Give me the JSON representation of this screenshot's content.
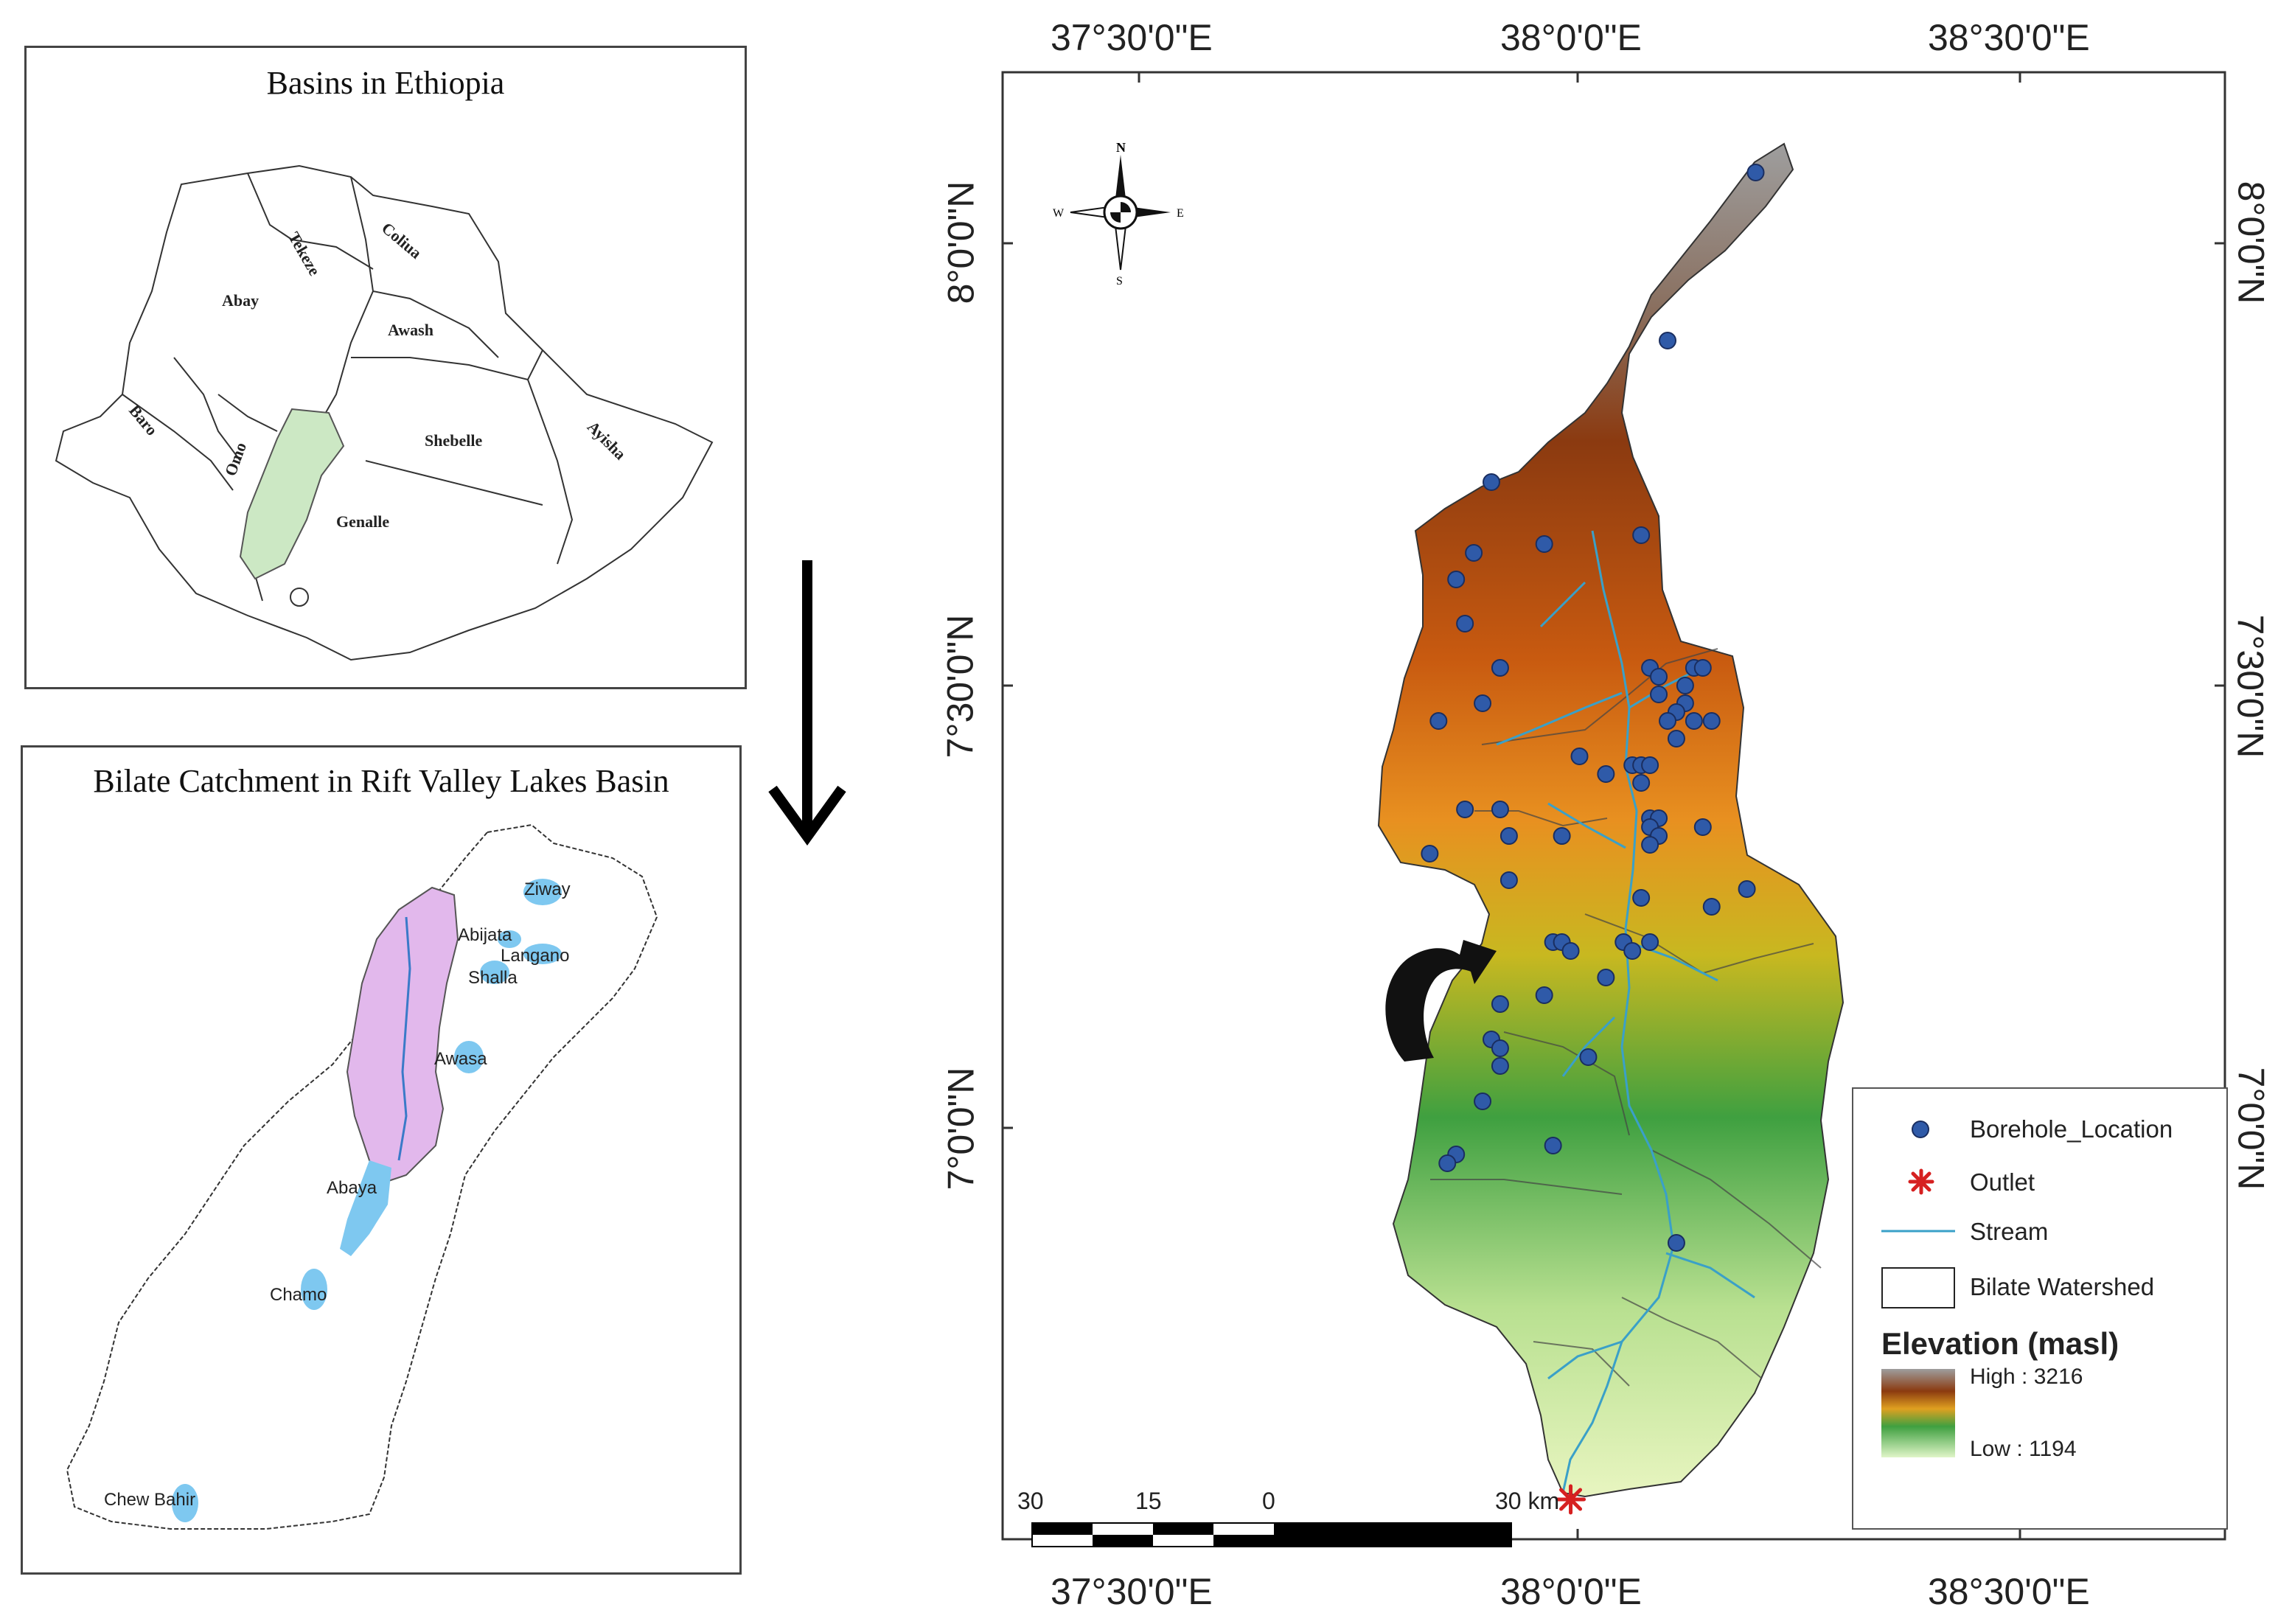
{
  "inset_ethiopia": {
    "title": "Basins in Ethiopia",
    "basins": [
      "Tekeze",
      "Coliua",
      "Abay",
      "Awash",
      "Baro",
      "Omo",
      "Shebelle",
      "Ayisha",
      "Genalle"
    ]
  },
  "inset_rift": {
    "title": "Bilate Catchment in Rift Valley Lakes Basin",
    "lakes": [
      "Ziway",
      "Abijata",
      "Langano",
      "Shalla",
      "Awasa",
      "Abaya",
      "Chamo",
      "Chew Bahir"
    ]
  },
  "main_map": {
    "top_axis": [
      "37°30'0\"E",
      "38°0'0\"E",
      "38°30'0\"E"
    ],
    "bottom_axis": [
      "37°30'0\"E",
      "38°0'0\"E",
      "38°30'0\"E"
    ],
    "left_axis": [
      "8°0'0\"N",
      "7°30'0\"N",
      "7°0'0\"N"
    ],
    "right_axis": [
      "8°0'0\"N",
      "7°30'0\"N",
      "7°0'0\"N"
    ],
    "north_arrow": {
      "n": "N",
      "s": "S",
      "e": "E",
      "w": "W"
    },
    "scale_bar": [
      "30",
      "15",
      "0",
      "30 km"
    ],
    "boreholes": [
      {
        "lon": 38.2,
        "lat": 8.08
      },
      {
        "lon": 38.1,
        "lat": 7.89
      },
      {
        "lon": 37.9,
        "lat": 7.73
      },
      {
        "lon": 38.07,
        "lat": 7.67
      },
      {
        "lon": 37.96,
        "lat": 7.66
      },
      {
        "lon": 37.88,
        "lat": 7.65
      },
      {
        "lon": 37.86,
        "lat": 7.62
      },
      {
        "lon": 37.87,
        "lat": 7.57
      },
      {
        "lon": 37.91,
        "lat": 7.52
      },
      {
        "lon": 38.08,
        "lat": 7.52
      },
      {
        "lon": 38.09,
        "lat": 7.51
      },
      {
        "lon": 38.13,
        "lat": 7.52
      },
      {
        "lon": 38.14,
        "lat": 7.52
      },
      {
        "lon": 38.12,
        "lat": 7.5
      },
      {
        "lon": 38.09,
        "lat": 7.49
      },
      {
        "lon": 37.89,
        "lat": 7.48
      },
      {
        "lon": 38.12,
        "lat": 7.48
      },
      {
        "lon": 38.11,
        "lat": 7.47
      },
      {
        "lon": 38.1,
        "lat": 7.46
      },
      {
        "lon": 38.13,
        "lat": 7.46
      },
      {
        "lon": 38.15,
        "lat": 7.46
      },
      {
        "lon": 37.84,
        "lat": 7.46
      },
      {
        "lon": 38.11,
        "lat": 7.44
      },
      {
        "lon": 38.0,
        "lat": 7.42
      },
      {
        "lon": 38.06,
        "lat": 7.41
      },
      {
        "lon": 38.07,
        "lat": 7.41
      },
      {
        "lon": 38.08,
        "lat": 7.41
      },
      {
        "lon": 38.03,
        "lat": 7.4
      },
      {
        "lon": 38.07,
        "lat": 7.39
      },
      {
        "lon": 37.87,
        "lat": 7.36
      },
      {
        "lon": 37.91,
        "lat": 7.36
      },
      {
        "lon": 38.08,
        "lat": 7.35
      },
      {
        "lon": 38.09,
        "lat": 7.35
      },
      {
        "lon": 38.14,
        "lat": 7.34
      },
      {
        "lon": 38.08,
        "lat": 7.34
      },
      {
        "lon": 37.92,
        "lat": 7.33
      },
      {
        "lon": 38.09,
        "lat": 7.33
      },
      {
        "lon": 37.98,
        "lat": 7.33
      },
      {
        "lon": 38.08,
        "lat": 7.32
      },
      {
        "lon": 37.83,
        "lat": 7.31
      },
      {
        "lon": 37.92,
        "lat": 7.28
      },
      {
        "lon": 38.07,
        "lat": 7.26
      },
      {
        "lon": 38.19,
        "lat": 7.27
      },
      {
        "lon": 38.15,
        "lat": 7.25
      },
      {
        "lon": 37.97,
        "lat": 7.21
      },
      {
        "lon": 37.98,
        "lat": 7.21
      },
      {
        "lon": 38.05,
        "lat": 7.21
      },
      {
        "lon": 37.99,
        "lat": 7.2
      },
      {
        "lon": 38.06,
        "lat": 7.2
      },
      {
        "lon": 38.08,
        "lat": 7.21
      },
      {
        "lon": 38.03,
        "lat": 7.17
      },
      {
        "lon": 37.96,
        "lat": 7.15
      },
      {
        "lon": 37.91,
        "lat": 7.14
      },
      {
        "lon": 37.9,
        "lat": 7.1
      },
      {
        "lon": 37.91,
        "lat": 7.09
      },
      {
        "lon": 37.91,
        "lat": 7.07
      },
      {
        "lon": 38.01,
        "lat": 7.08
      },
      {
        "lon": 37.89,
        "lat": 7.03
      },
      {
        "lon": 37.97,
        "lat": 6.98
      },
      {
        "lon": 37.86,
        "lat": 6.97
      },
      {
        "lon": 37.85,
        "lat": 6.96
      },
      {
        "lon": 38.11,
        "lat": 6.87
      }
    ],
    "outlet": {
      "lon": 37.99,
      "lat": 6.58
    }
  },
  "legend": {
    "borehole": "Borehole_Location",
    "outlet": "Outlet",
    "stream": "Stream",
    "watershed": "Bilate Watershed",
    "elevation_title": "Elevation (masl)",
    "high": "High : 3216",
    "low": "Low : 1194",
    "high_value": 3216,
    "low_value": 1194
  },
  "colors": {
    "borehole": "#2f5aa8",
    "outlet": "#d62020",
    "stream": "#3aa0c8",
    "bilate_inset": "#cce8c4",
    "rift_inset": "#e2b8ec",
    "lake": "#7ec8f0"
  }
}
